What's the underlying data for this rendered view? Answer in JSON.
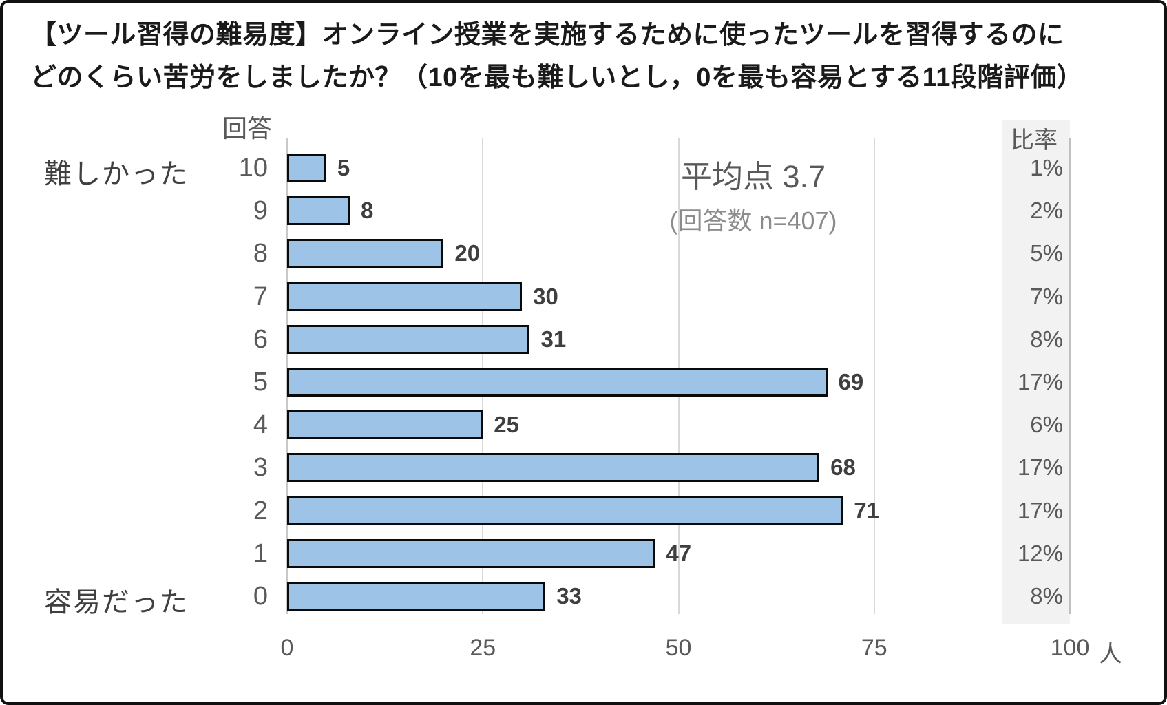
{
  "title": {
    "line1": "【ツール習得の難易度】オンライン授業を実施するために使ったツールを習得するのに",
    "line2": "どのくらい苦労をしましたか？（10を最も難しいとし，0を最も容易とする11段階評価）"
  },
  "chart_data": {
    "type": "bar",
    "orientation": "horizontal",
    "title": "【ツール習得の難易度】オンライン授業を実施するために使ったツールを習得するのにどのくらい苦労をしましたか？（10を最も難しいとし，0を最も容易とする11段階評価）",
    "category_axis_header": "回答",
    "ratio_column_header": "比率",
    "categories": [
      "10",
      "9",
      "8",
      "7",
      "6",
      "5",
      "4",
      "3",
      "2",
      "1",
      "0"
    ],
    "values": [
      5,
      8,
      20,
      30,
      31,
      69,
      25,
      68,
      71,
      47,
      33
    ],
    "percent_labels": [
      "1%",
      "2%",
      "5%",
      "7%",
      "8%",
      "17%",
      "6%",
      "17%",
      "17%",
      "12%",
      "8%"
    ],
    "end_labels": {
      "top": "難しかった",
      "bottom": "容易だった"
    },
    "annotations": {
      "mean": "平均点 3.7",
      "n": "(回答数 n=407)"
    },
    "value_axis_ticks": [
      "0",
      "25",
      "50",
      "75",
      "100"
    ],
    "value_axis_unit": "人",
    "xlim": [
      0,
      100
    ],
    "grid": true,
    "legend_position": "none",
    "colors": {
      "bar_fill": "#9dc3e6",
      "bar_border": "#0a0a0a",
      "gridline": "#d9d9d9",
      "ratio_strip_bg": "#f2f2f2",
      "axis_text": "#595959",
      "value_text": "#3f3f3f",
      "title_text": "#1a1a1a"
    }
  }
}
